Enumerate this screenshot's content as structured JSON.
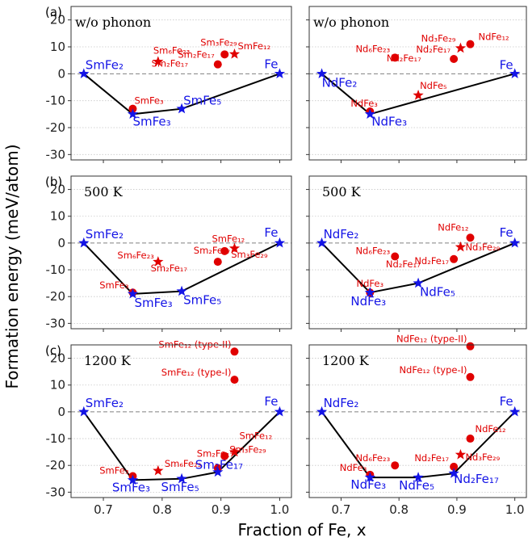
{
  "colors": {
    "hull": "#000000",
    "stable": "#1414e6",
    "unstable": "#e00000",
    "zero_line": "#808080",
    "grid": "#c8c8c8"
  },
  "chart_data": {
    "type": "scatter",
    "xlabel": "Fraction of Fe, x",
    "ylabel": "Formation energy (meV/atom)",
    "xlim": [
      0.645,
      1.02
    ],
    "ylim": [
      -32,
      25
    ],
    "xticks": [
      0.7,
      0.8,
      0.9,
      1.0
    ],
    "yticks": [
      -30,
      -20,
      -10,
      0,
      10,
      20
    ],
    "grid": "horizontal dotted",
    "zero_line": "dashed at y = 0",
    "markers": "star = hull/stable phase, circle or star in red = off-hull phase",
    "panels": [
      {
        "tag": "(a)",
        "row": 0,
        "col": 0,
        "title": "w/o phonon",
        "hull": [
          [
            0.6667,
            0
          ],
          [
            0.75,
            -15
          ],
          [
            0.8333,
            -13
          ],
          [
            1.0,
            0
          ]
        ],
        "stable": [
          {
            "x": 0.6667,
            "y": 0,
            "m": "star",
            "label": "SmFe₂"
          },
          {
            "x": 0.75,
            "y": -15,
            "m": "star",
            "label": "SmFe₃"
          },
          {
            "x": 0.8333,
            "y": -13,
            "m": "star",
            "label": "SmFe₅"
          },
          {
            "x": 1.0,
            "y": 0,
            "m": "star",
            "label": "Fe"
          }
        ],
        "unstable": [
          {
            "x": 0.75,
            "y": -13,
            "m": "circle",
            "label": "SmFe₃"
          },
          {
            "x": 0.7931,
            "y": 4.5,
            "m": "star",
            "label": "Sm₆Fe₂₃"
          },
          {
            "x": 0.8947,
            "y": 3.5,
            "m": "circle",
            "label": "Sm₂Fe₁₇"
          },
          {
            "x": 0.9063,
            "y": 7.2,
            "m": "circle",
            "label": "Sm₃Fe₂₉"
          },
          {
            "x": 0.9231,
            "y": 7.3,
            "m": "star",
            "label": "SmFe₁₂"
          }
        ],
        "annotations": [
          {
            "text": "Sm₂Fe₁₇",
            "x": 0.9,
            "y": 3.5
          }
        ]
      },
      {
        "tag": "",
        "row": 0,
        "col": 1,
        "title": "w/o phonon",
        "hull": [
          [
            0.6667,
            0
          ],
          [
            0.75,
            -15
          ],
          [
            1.0,
            0
          ]
        ],
        "stable": [
          {
            "x": 0.6667,
            "y": 0,
            "m": "star",
            "label": "NdFe₂"
          },
          {
            "x": 0.75,
            "y": -15,
            "m": "star",
            "label": "NdFe₃"
          },
          {
            "x": 1.0,
            "y": 0,
            "m": "star",
            "label": "Fe"
          }
        ],
        "unstable": [
          {
            "x": 0.75,
            "y": -14,
            "m": "circle",
            "label": "NdFe₃"
          },
          {
            "x": 0.7931,
            "y": 6,
            "m": "circle",
            "label": "Nd₆Fe₂₃"
          },
          {
            "x": 0.8333,
            "y": -8,
            "m": "star",
            "label": "NdFe₅"
          },
          {
            "x": 0.8947,
            "y": 5.5,
            "m": "circle",
            "label": "Nd₂Fe₁₇"
          },
          {
            "x": 0.9063,
            "y": 9.5,
            "m": "star",
            "label": "Nd₃Fe₂₉"
          },
          {
            "x": 0.9231,
            "y": 11,
            "m": "circle",
            "label": "NdFe₁₂"
          }
        ],
        "annotations": [
          {
            "text": "Nd₂Fe₁₇",
            "x": 0.9,
            "y": 5.5
          }
        ]
      },
      {
        "tag": "(b)",
        "row": 1,
        "col": 0,
        "title": "500 K",
        "hull": [
          [
            0.6667,
            0
          ],
          [
            0.75,
            -19
          ],
          [
            0.8333,
            -18
          ],
          [
            1.0,
            0
          ]
        ],
        "stable": [
          {
            "x": 0.6667,
            "y": 0,
            "m": "star",
            "label": "SmFe₂"
          },
          {
            "x": 0.75,
            "y": -19,
            "m": "star",
            "label": "SmFe₃"
          },
          {
            "x": 0.8333,
            "y": -18,
            "m": "star",
            "label": "SmFe₅"
          },
          {
            "x": 1.0,
            "y": 0,
            "m": "star",
            "label": "Fe"
          }
        ],
        "unstable": [
          {
            "x": 0.75,
            "y": -18.5,
            "m": "circle",
            "label": "SmFe₃"
          },
          {
            "x": 0.7931,
            "y": -7,
            "m": "star",
            "label": "Sm₆Fe₂₃"
          },
          {
            "x": 0.8947,
            "y": -7,
            "m": "circle",
            "label": "Sm₂Fe₁₇"
          },
          {
            "x": 0.9063,
            "y": -3,
            "m": "circle",
            "label": "Sm₃Fe₂₉"
          },
          {
            "x": 0.9231,
            "y": -2,
            "m": "star",
            "label": "SmFe₁₂"
          }
        ],
        "annotations": [
          {
            "text": "Sm₂Fe₁₇",
            "x": 0.9,
            "y": -7
          }
        ]
      },
      {
        "tag": "",
        "row": 1,
        "col": 1,
        "title": "500 K",
        "hull": [
          [
            0.6667,
            0
          ],
          [
            0.75,
            -18.5
          ],
          [
            0.8333,
            -15
          ],
          [
            1.0,
            0
          ]
        ],
        "stable": [
          {
            "x": 0.6667,
            "y": 0,
            "m": "star",
            "label": "NdFe₂"
          },
          {
            "x": 0.75,
            "y": -18.5,
            "m": "star",
            "label": "NdFe₃"
          },
          {
            "x": 0.8333,
            "y": -15,
            "m": "star",
            "label": "NdFe₅"
          },
          {
            "x": 1.0,
            "y": 0,
            "m": "star",
            "label": "Fe"
          }
        ],
        "unstable": [
          {
            "x": 0.75,
            "y": -18.5,
            "m": "circle",
            "label": "NdFe₃"
          },
          {
            "x": 0.7931,
            "y": -5,
            "m": "circle",
            "label": "Nd₆Fe₂₃"
          },
          {
            "x": 0.8947,
            "y": -6,
            "m": "circle",
            "label": "Nd₂Fe₁₇"
          },
          {
            "x": 0.9063,
            "y": -1.5,
            "m": "star",
            "label": "Nd₃Fe₂₉"
          },
          {
            "x": 0.9231,
            "y": 2,
            "m": "circle",
            "label": "NdFe₁₂"
          }
        ],
        "annotations": [
          {
            "text": "Nd₂Fe₁₇",
            "x": 0.9,
            "y": -6
          }
        ]
      },
      {
        "tag": "(c)",
        "row": 2,
        "col": 0,
        "title": "1200 K",
        "hull": [
          [
            0.6667,
            0
          ],
          [
            0.75,
            -25.5
          ],
          [
            0.8333,
            -25
          ],
          [
            0.8947,
            -22.5
          ],
          [
            1.0,
            0
          ]
        ],
        "stable": [
          {
            "x": 0.6667,
            "y": 0,
            "m": "star",
            "label": "SmFe₂"
          },
          {
            "x": 0.75,
            "y": -25.5,
            "m": "star",
            "label": "SmFe₃"
          },
          {
            "x": 0.8333,
            "y": -25,
            "m": "star",
            "label": "SmFe₅"
          },
          {
            "x": 0.8947,
            "y": -22.5,
            "m": "star",
            "label": "Sm₂Fe₁₇"
          },
          {
            "x": 1.0,
            "y": 0,
            "m": "star",
            "label": "Fe"
          }
        ],
        "unstable": [
          {
            "x": 0.75,
            "y": -24,
            "m": "circle",
            "label": "SmFe₃"
          },
          {
            "x": 0.7931,
            "y": -22,
            "m": "star",
            "label": "Sm₆Fe₂₃"
          },
          {
            "x": 0.8947,
            "y": -21,
            "m": "circle",
            "label": "Sm₂Fe₁₇"
          },
          {
            "x": 0.9063,
            "y": -16.5,
            "m": "circle",
            "label": "Sm₃Fe₂₉"
          },
          {
            "x": 0.9231,
            "y": -15,
            "m": "star",
            "label": "SmFe₁₂"
          },
          {
            "x": 0.9231,
            "y": 22.5,
            "m": "circle",
            "label": "SmFe₁₂ (type-II)"
          },
          {
            "x": 0.9231,
            "y": 12,
            "m": "circle",
            "label": "SmFe₁₂ (type-I)"
          }
        ],
        "annotations": []
      },
      {
        "tag": "",
        "row": 2,
        "col": 1,
        "title": "1200 K",
        "hull": [
          [
            0.6667,
            0
          ],
          [
            0.75,
            -24.5
          ],
          [
            0.8333,
            -24.5
          ],
          [
            0.8947,
            -23
          ],
          [
            1.0,
            0
          ]
        ],
        "stable": [
          {
            "x": 0.6667,
            "y": 0,
            "m": "star",
            "label": "NdFe₂"
          },
          {
            "x": 0.75,
            "y": -24.5,
            "m": "star",
            "label": "NdFe₃"
          },
          {
            "x": 0.8333,
            "y": -24.5,
            "m": "star",
            "label": "NdFe₅"
          },
          {
            "x": 0.8947,
            "y": -23,
            "m": "star",
            "label": "Nd₂Fe₁₇"
          },
          {
            "x": 1.0,
            "y": 0,
            "m": "star",
            "label": "Fe"
          }
        ],
        "unstable": [
          {
            "x": 0.75,
            "y": -23.5,
            "m": "circle",
            "label": "NdFe₃"
          },
          {
            "x": 0.7931,
            "y": -20,
            "m": "circle",
            "label": "Nd₆Fe₂₃"
          },
          {
            "x": 0.8947,
            "y": -20.5,
            "m": "circle",
            "label": "Nd₂Fe₁₇"
          },
          {
            "x": 0.9063,
            "y": -16,
            "m": "star",
            "label": "Nd₃Fe₂₉"
          },
          {
            "x": 0.9231,
            "y": -10,
            "m": "circle",
            "label": "NdFe₁₂"
          },
          {
            "x": 0.9231,
            "y": 24.5,
            "m": "circle",
            "label": "NdFe₁₂ (type-II)"
          },
          {
            "x": 0.9231,
            "y": 13,
            "m": "circle",
            "label": "NdFe₁₂ (type-I)"
          }
        ],
        "annotations": []
      }
    ]
  }
}
